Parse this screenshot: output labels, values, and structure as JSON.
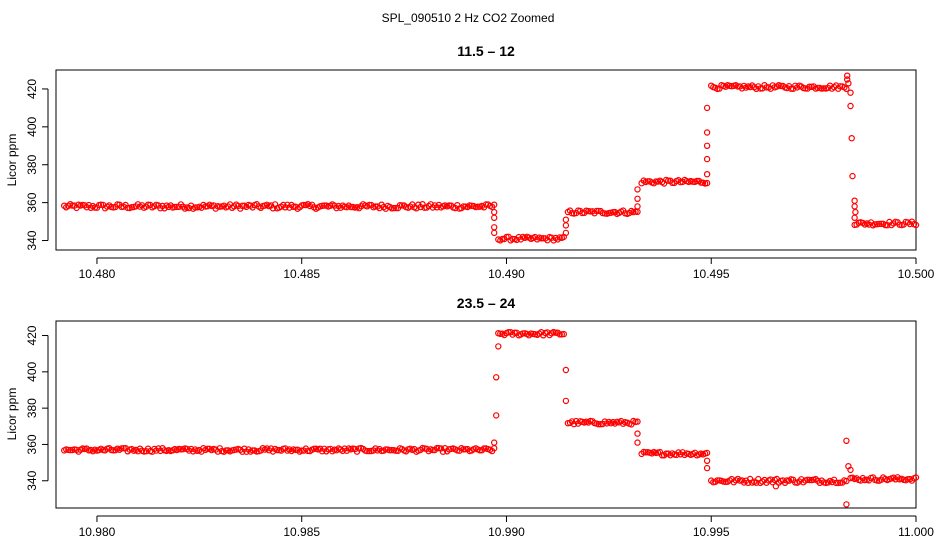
{
  "figure_title": "SPL_090510  2 Hz CO2 Zoomed",
  "point_color": "#ff0000",
  "chart_data": [
    {
      "type": "scatter",
      "title": "11.5 – 12",
      "xlabel": "",
      "ylabel": "Licor ppm",
      "xlim": [
        10.479,
        10.5
      ],
      "ylim": [
        335,
        430
      ],
      "x_ticks": [
        10.48,
        10.485,
        10.49,
        10.495,
        10.5
      ],
      "x_tick_labels": [
        "10.480",
        "10.485",
        "10.490",
        "10.495",
        "10.500"
      ],
      "y_ticks": [
        340,
        360,
        380,
        400,
        420
      ],
      "y_tick_labels": [
        "340",
        "360",
        "380",
        "400",
        "420"
      ],
      "grid": false,
      "segments": [
        {
          "x": [
            10.4792,
            10.4897
          ],
          "y": 358,
          "noise": 1.2
        },
        {
          "x": [
            10.4898,
            10.4914
          ],
          "y": 341,
          "noise": 1.0
        },
        {
          "x": [
            10.4915,
            10.4932
          ],
          "y": 355,
          "noise": 1.0
        },
        {
          "x": [
            10.4933,
            10.4949
          ],
          "y": 371,
          "noise": 1.0
        },
        {
          "x": [
            10.495,
            10.4983
          ],
          "y": 421,
          "noise": 1.0
        },
        {
          "x": [
            10.4985,
            10.5
          ],
          "y": 349,
          "noise": 1.0
        }
      ],
      "points": [
        {
          "x": 10.4897,
          "y": 355
        },
        {
          "x": 10.4897,
          "y": 352
        },
        {
          "x": 10.4897,
          "y": 347
        },
        {
          "x": 10.4897,
          "y": 344
        },
        {
          "x": 10.49145,
          "y": 344
        },
        {
          "x": 10.49145,
          "y": 348
        },
        {
          "x": 10.49145,
          "y": 351
        },
        {
          "x": 10.4932,
          "y": 358
        },
        {
          "x": 10.4932,
          "y": 362
        },
        {
          "x": 10.4932,
          "y": 367
        },
        {
          "x": 10.4949,
          "y": 375
        },
        {
          "x": 10.4949,
          "y": 383
        },
        {
          "x": 10.4949,
          "y": 390
        },
        {
          "x": 10.4949,
          "y": 397
        },
        {
          "x": 10.4949,
          "y": 410
        },
        {
          "x": 10.49832,
          "y": 427
        },
        {
          "x": 10.49832,
          "y": 425
        },
        {
          "x": 10.49835,
          "y": 423
        },
        {
          "x": 10.4984,
          "y": 418
        },
        {
          "x": 10.4984,
          "y": 411
        },
        {
          "x": 10.49843,
          "y": 394
        },
        {
          "x": 10.49845,
          "y": 374
        },
        {
          "x": 10.4985,
          "y": 361
        },
        {
          "x": 10.4985,
          "y": 358
        },
        {
          "x": 10.49852,
          "y": 355
        },
        {
          "x": 10.4985,
          "y": 352
        }
      ]
    },
    {
      "type": "scatter",
      "title": "23.5 – 24",
      "xlabel": "",
      "ylabel": "Licor ppm",
      "xlim": [
        10.979,
        11.0
      ],
      "ylim": [
        325,
        428
      ],
      "x_ticks": [
        10.98,
        10.985,
        10.99,
        10.995,
        11.0
      ],
      "x_tick_labels": [
        "10.980",
        "10.985",
        "10.990",
        "10.995",
        "11.000"
      ],
      "y_ticks": [
        340,
        360,
        380,
        400,
        420
      ],
      "y_tick_labels": [
        "340",
        "360",
        "380",
        "400",
        "420"
      ],
      "grid": false,
      "segments": [
        {
          "x": [
            10.9792,
            10.9897
          ],
          "y": 357,
          "noise": 1.0
        },
        {
          "x": [
            10.9898,
            10.9914
          ],
          "y": 421,
          "noise": 1.0
        },
        {
          "x": [
            10.9915,
            10.9932
          ],
          "y": 372,
          "noise": 1.0
        },
        {
          "x": [
            10.9933,
            10.9949
          ],
          "y": 355,
          "noise": 1.0
        },
        {
          "x": [
            10.995,
            10.9983
          ],
          "y": 340,
          "noise": 1.2
        },
        {
          "x": [
            10.9984,
            11.0
          ],
          "y": 341,
          "noise": 1.0
        }
      ],
      "points": [
        {
          "x": 10.9897,
          "y": 361
        },
        {
          "x": 10.98975,
          "y": 376
        },
        {
          "x": 10.98975,
          "y": 397
        },
        {
          "x": 10.9898,
          "y": 414
        },
        {
          "x": 10.99145,
          "y": 401
        },
        {
          "x": 10.99145,
          "y": 384
        },
        {
          "x": 10.9932,
          "y": 366
        },
        {
          "x": 10.9932,
          "y": 361
        },
        {
          "x": 10.9949,
          "y": 351
        },
        {
          "x": 10.9949,
          "y": 347
        },
        {
          "x": 10.99658,
          "y": 337
        },
        {
          "x": 10.99665,
          "y": 339
        },
        {
          "x": 10.9983,
          "y": 362
        },
        {
          "x": 10.99835,
          "y": 348
        },
        {
          "x": 10.9984,
          "y": 346
        },
        {
          "x": 10.9983,
          "y": 327
        }
      ]
    }
  ]
}
